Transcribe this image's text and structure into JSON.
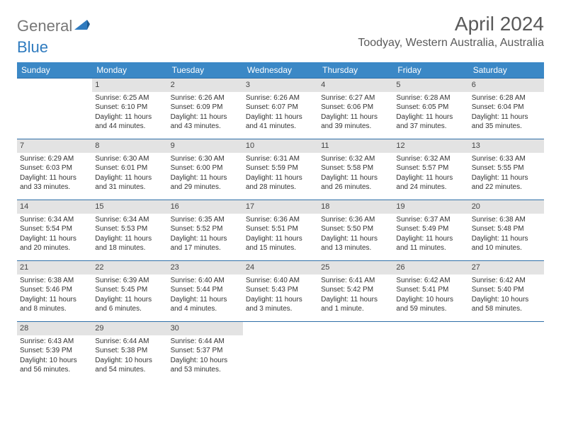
{
  "brand": {
    "part1": "General",
    "part2": "Blue"
  },
  "title": "April 2024",
  "location": "Toodyay, Western Australia, Australia",
  "colors": {
    "header_bg": "#3b88c6",
    "header_text": "#ffffff",
    "daynum_bg": "#e3e3e3",
    "rule": "#2f6fa8",
    "text": "#333333",
    "logo_gray": "#777777",
    "logo_blue": "#2f7bbf"
  },
  "day_headers": [
    "Sunday",
    "Monday",
    "Tuesday",
    "Wednesday",
    "Thursday",
    "Friday",
    "Saturday"
  ],
  "weeks": [
    [
      {
        "n": "",
        "sr": "",
        "ss": "",
        "dl": ""
      },
      {
        "n": "1",
        "sr": "6:25 AM",
        "ss": "6:10 PM",
        "dl": "11 hours and 44 minutes."
      },
      {
        "n": "2",
        "sr": "6:26 AM",
        "ss": "6:09 PM",
        "dl": "11 hours and 43 minutes."
      },
      {
        "n": "3",
        "sr": "6:26 AM",
        "ss": "6:07 PM",
        "dl": "11 hours and 41 minutes."
      },
      {
        "n": "4",
        "sr": "6:27 AM",
        "ss": "6:06 PM",
        "dl": "11 hours and 39 minutes."
      },
      {
        "n": "5",
        "sr": "6:28 AM",
        "ss": "6:05 PM",
        "dl": "11 hours and 37 minutes."
      },
      {
        "n": "6",
        "sr": "6:28 AM",
        "ss": "6:04 PM",
        "dl": "11 hours and 35 minutes."
      }
    ],
    [
      {
        "n": "7",
        "sr": "6:29 AM",
        "ss": "6:03 PM",
        "dl": "11 hours and 33 minutes."
      },
      {
        "n": "8",
        "sr": "6:30 AM",
        "ss": "6:01 PM",
        "dl": "11 hours and 31 minutes."
      },
      {
        "n": "9",
        "sr": "6:30 AM",
        "ss": "6:00 PM",
        "dl": "11 hours and 29 minutes."
      },
      {
        "n": "10",
        "sr": "6:31 AM",
        "ss": "5:59 PM",
        "dl": "11 hours and 28 minutes."
      },
      {
        "n": "11",
        "sr": "6:32 AM",
        "ss": "5:58 PM",
        "dl": "11 hours and 26 minutes."
      },
      {
        "n": "12",
        "sr": "6:32 AM",
        "ss": "5:57 PM",
        "dl": "11 hours and 24 minutes."
      },
      {
        "n": "13",
        "sr": "6:33 AM",
        "ss": "5:55 PM",
        "dl": "11 hours and 22 minutes."
      }
    ],
    [
      {
        "n": "14",
        "sr": "6:34 AM",
        "ss": "5:54 PM",
        "dl": "11 hours and 20 minutes."
      },
      {
        "n": "15",
        "sr": "6:34 AM",
        "ss": "5:53 PM",
        "dl": "11 hours and 18 minutes."
      },
      {
        "n": "16",
        "sr": "6:35 AM",
        "ss": "5:52 PM",
        "dl": "11 hours and 17 minutes."
      },
      {
        "n": "17",
        "sr": "6:36 AM",
        "ss": "5:51 PM",
        "dl": "11 hours and 15 minutes."
      },
      {
        "n": "18",
        "sr": "6:36 AM",
        "ss": "5:50 PM",
        "dl": "11 hours and 13 minutes."
      },
      {
        "n": "19",
        "sr": "6:37 AM",
        "ss": "5:49 PM",
        "dl": "11 hours and 11 minutes."
      },
      {
        "n": "20",
        "sr": "6:38 AM",
        "ss": "5:48 PM",
        "dl": "11 hours and 10 minutes."
      }
    ],
    [
      {
        "n": "21",
        "sr": "6:38 AM",
        "ss": "5:46 PM",
        "dl": "11 hours and 8 minutes."
      },
      {
        "n": "22",
        "sr": "6:39 AM",
        "ss": "5:45 PM",
        "dl": "11 hours and 6 minutes."
      },
      {
        "n": "23",
        "sr": "6:40 AM",
        "ss": "5:44 PM",
        "dl": "11 hours and 4 minutes."
      },
      {
        "n": "24",
        "sr": "6:40 AM",
        "ss": "5:43 PM",
        "dl": "11 hours and 3 minutes."
      },
      {
        "n": "25",
        "sr": "6:41 AM",
        "ss": "5:42 PM",
        "dl": "11 hours and 1 minute."
      },
      {
        "n": "26",
        "sr": "6:42 AM",
        "ss": "5:41 PM",
        "dl": "10 hours and 59 minutes."
      },
      {
        "n": "27",
        "sr": "6:42 AM",
        "ss": "5:40 PM",
        "dl": "10 hours and 58 minutes."
      }
    ],
    [
      {
        "n": "28",
        "sr": "6:43 AM",
        "ss": "5:39 PM",
        "dl": "10 hours and 56 minutes."
      },
      {
        "n": "29",
        "sr": "6:44 AM",
        "ss": "5:38 PM",
        "dl": "10 hours and 54 minutes."
      },
      {
        "n": "30",
        "sr": "6:44 AM",
        "ss": "5:37 PM",
        "dl": "10 hours and 53 minutes."
      },
      {
        "n": "",
        "sr": "",
        "ss": "",
        "dl": ""
      },
      {
        "n": "",
        "sr": "",
        "ss": "",
        "dl": ""
      },
      {
        "n": "",
        "sr": "",
        "ss": "",
        "dl": ""
      },
      {
        "n": "",
        "sr": "",
        "ss": "",
        "dl": ""
      }
    ]
  ],
  "labels": {
    "sunrise": "Sunrise:",
    "sunset": "Sunset:",
    "daylight": "Daylight:"
  }
}
